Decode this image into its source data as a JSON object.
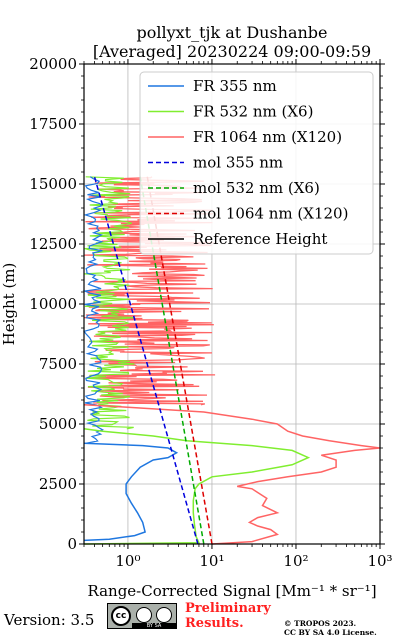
{
  "chart_data": {
    "type": "line",
    "title_line1": "pollyxt_tjk at Dushanbe",
    "title_line2": "[Averaged] 20230224 09:00-09:59",
    "xlabel": "Range-Corrected Signal [Mm⁻¹ * sr⁻¹]",
    "ylabel": "Height (m)",
    "xscale": "log",
    "xlim": [
      0.3,
      1000
    ],
    "ylim": [
      0,
      20000
    ],
    "x_tick_labels": [
      "10⁰",
      "10¹",
      "10²",
      "10³"
    ],
    "x_tick_values": [
      1,
      10,
      100,
      1000
    ],
    "y_ticks": [
      0,
      2500,
      5000,
      7500,
      10000,
      12500,
      15000,
      17500,
      20000
    ],
    "grid": true,
    "legend_position": "top-right",
    "colors": {
      "fr355": "#1f77e0",
      "fr532": "#80ee30",
      "fr1064": "#ff6464",
      "mol355": "#0000dd",
      "mol532": "#00aa00",
      "mol1064": "#dd0000",
      "reference": "#000000"
    },
    "series": [
      {
        "name": "FR 355 nm",
        "key": "fr355",
        "style": "solid",
        "points": [
          [
            0.3,
            150
          ],
          [
            0.6,
            200
          ],
          [
            1.2,
            350
          ],
          [
            1.6,
            500
          ],
          [
            1.5,
            900
          ],
          [
            1.3,
            1300
          ],
          [
            1.1,
            1700
          ],
          [
            0.95,
            2100
          ],
          [
            0.95,
            2500
          ],
          [
            1.1,
            2800
          ],
          [
            1.4,
            3200
          ],
          [
            2,
            3500
          ],
          [
            3,
            3600
          ],
          [
            3.8,
            3800
          ],
          [
            3,
            4000
          ],
          [
            1.5,
            4100
          ],
          [
            0.3,
            4200
          ]
        ]
      },
      {
        "name": "FR 532 nm (X6)",
        "key": "fr532",
        "style": "solid",
        "points": [
          [
            0.3,
            0
          ],
          [
            7,
            50
          ],
          [
            6.5,
            300
          ],
          [
            6.2,
            800
          ],
          [
            6,
            1300
          ],
          [
            6,
            1800
          ],
          [
            6.3,
            2300
          ],
          [
            7,
            2500
          ],
          [
            10,
            2800
          ],
          [
            30,
            3000
          ],
          [
            90,
            3300
          ],
          [
            140,
            3600
          ],
          [
            90,
            3900
          ],
          [
            30,
            4100
          ],
          [
            5,
            4300
          ],
          [
            2,
            4500
          ],
          [
            0.5,
            4700
          ],
          [
            0.3,
            4800
          ]
        ]
      },
      {
        "name": "FR 1064 nm (X120)",
        "key": "fr1064",
        "style": "solid",
        "points": [
          [
            10,
            0
          ],
          [
            30,
            100
          ],
          [
            60,
            400
          ],
          [
            50,
            600
          ],
          [
            35,
            750
          ],
          [
            28,
            900
          ],
          [
            35,
            1100
          ],
          [
            60,
            1300
          ],
          [
            40,
            1600
          ],
          [
            45,
            1900
          ],
          [
            30,
            2300
          ],
          [
            20,
            2400
          ],
          [
            35,
            2600
          ],
          [
            80,
            2800
          ],
          [
            200,
            3000
          ],
          [
            300,
            3200
          ],
          [
            300,
            3500
          ],
          [
            200,
            3700
          ],
          [
            500,
            3900
          ],
          [
            1000,
            4000
          ],
          [
            600,
            4100
          ],
          [
            250,
            4300
          ],
          [
            120,
            4500
          ],
          [
            80,
            4700
          ],
          [
            60,
            5000
          ],
          [
            30,
            5200
          ],
          [
            8,
            5500
          ],
          [
            1,
            5700
          ],
          [
            0.3,
            5800
          ]
        ]
      },
      {
        "name": "mol 355 nm",
        "key": "mol355",
        "style": "dashed",
        "points": [
          [
            6.8,
            0
          ],
          [
            0.4,
            15300
          ]
        ]
      },
      {
        "name": "mol 532 nm (X6)",
        "key": "mol532",
        "style": "dashed",
        "points": [
          [
            8,
            0
          ],
          [
            1.4,
            15300
          ]
        ]
      },
      {
        "name": "mol 1064 nm (X120)",
        "key": "mol1064",
        "style": "dashed",
        "points": [
          [
            10,
            0
          ],
          [
            1.7,
            15300
          ]
        ]
      },
      {
        "name": "Reference Height",
        "key": "reference",
        "style": "solid",
        "points": []
      }
    ]
  },
  "footer": {
    "version": "Version: 3.5",
    "license_badge": [
      "cc",
      "BY",
      "SA"
    ],
    "preliminary_line1": "Preliminary",
    "preliminary_line2": "Results.",
    "copyright_line1": "© TROPOS 2023.",
    "copyright_line2": "CC BY SA 4.0 License."
  }
}
